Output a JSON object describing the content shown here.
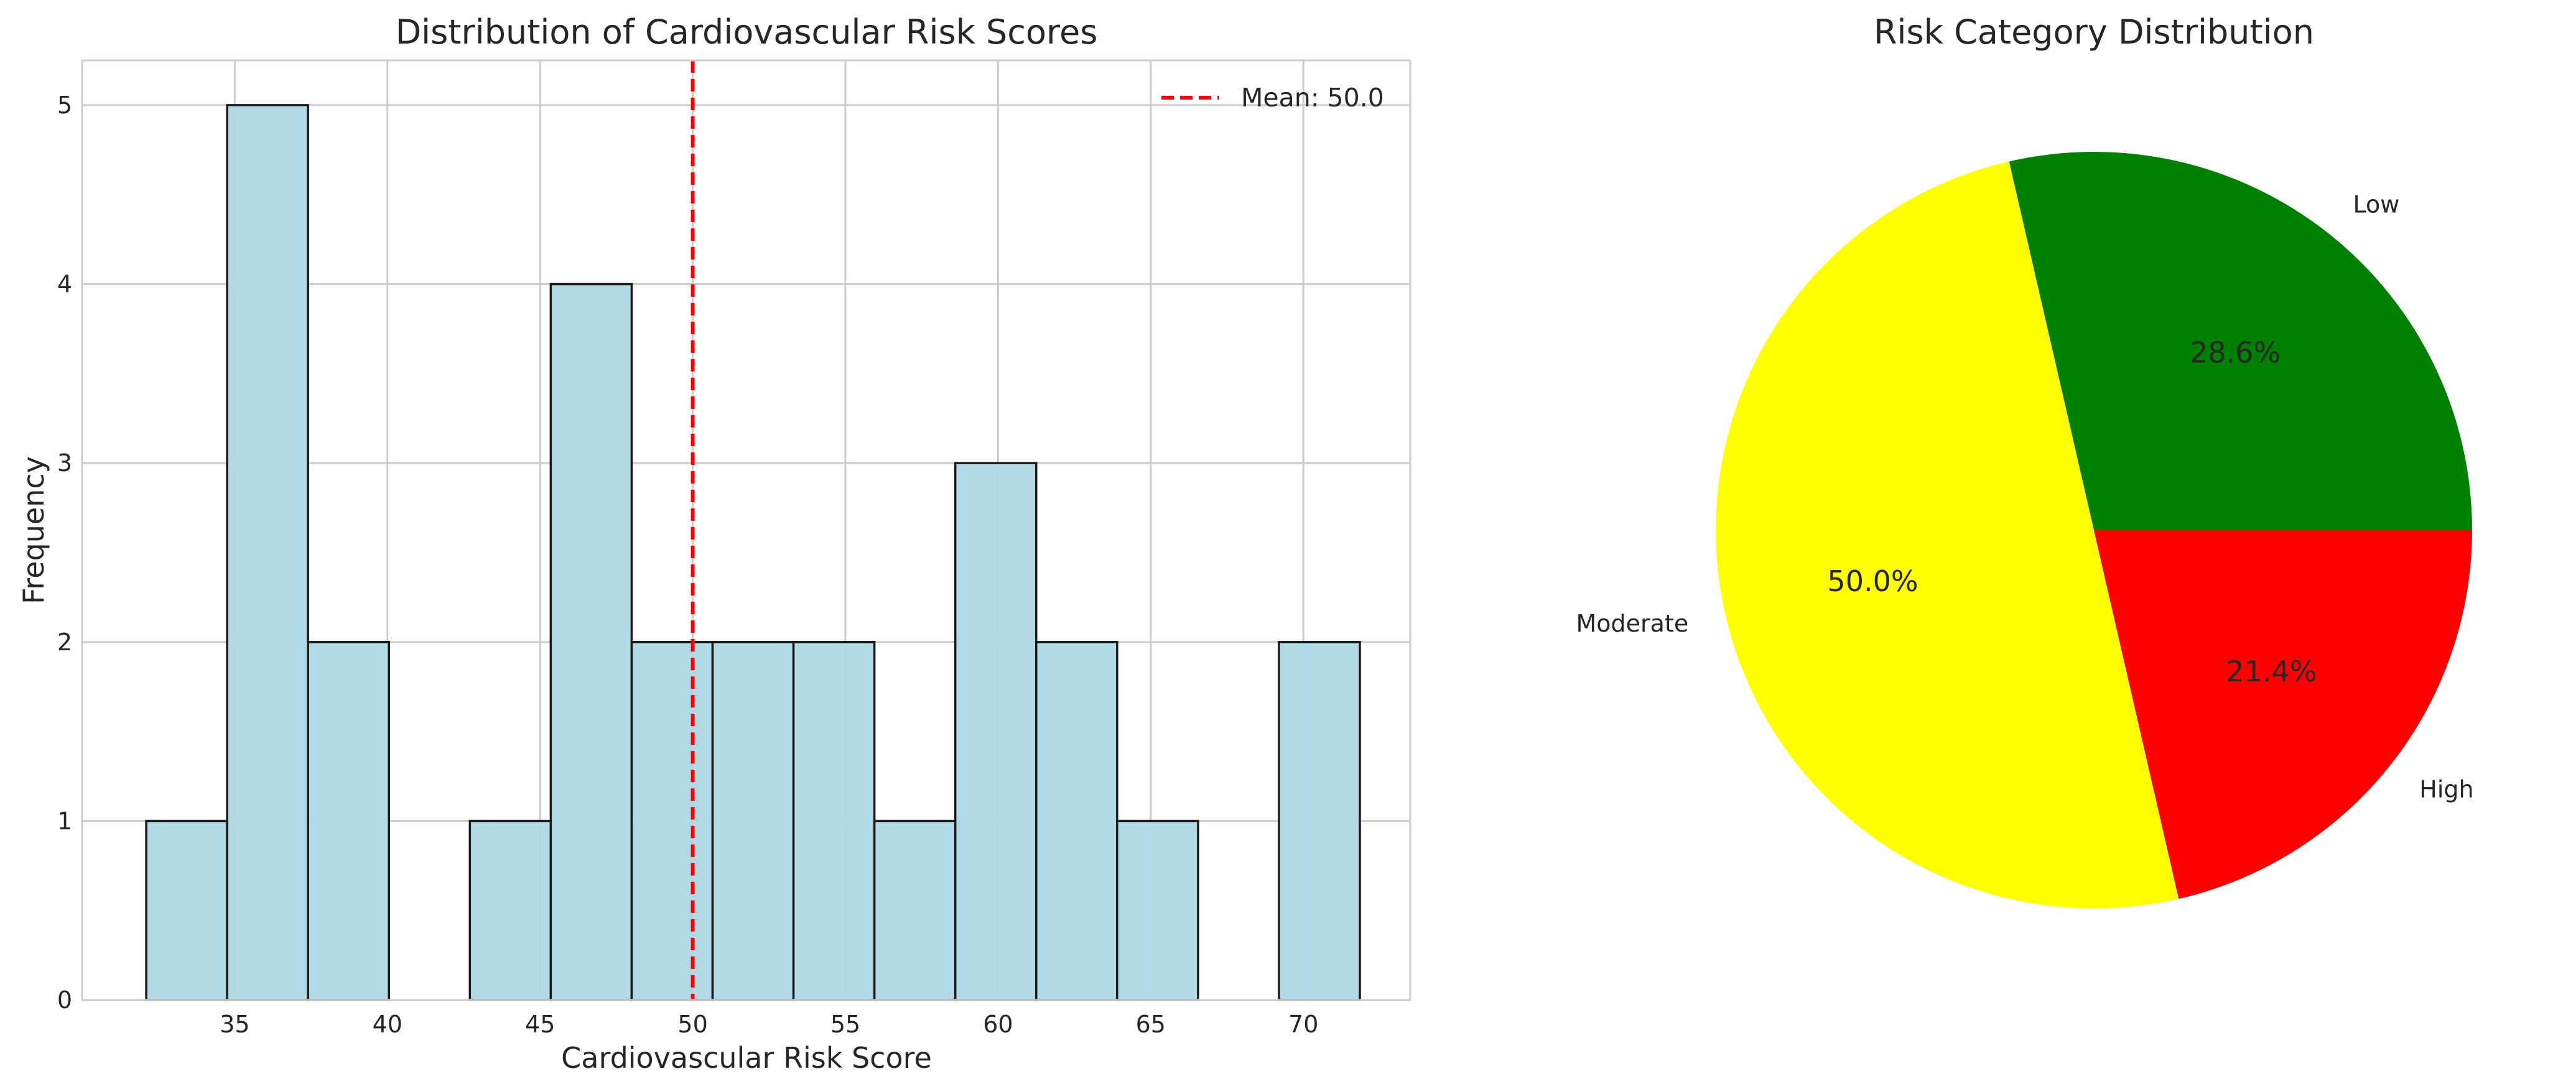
{
  "chart_data": [
    {
      "type": "bar",
      "subtype": "histogram",
      "title": "Distribution of Cardiovascular Risk Scores",
      "xlabel": "Cardiovascular Risk Score",
      "ylabel": "Frequency",
      "xlim": [
        30.0,
        73.5
      ],
      "ylim": [
        0,
        5.25
      ],
      "xticks": [
        35,
        40,
        45,
        50,
        55,
        60,
        65,
        70
      ],
      "yticks": [
        0,
        1,
        2,
        3,
        4,
        5
      ],
      "bins": [
        {
          "x0": 32.1,
          "x1": 34.75,
          "count": 1
        },
        {
          "x0": 34.75,
          "x1": 37.4,
          "count": 5
        },
        {
          "x0": 37.4,
          "x1": 40.05,
          "count": 2
        },
        {
          "x0": 40.05,
          "x1": 42.7,
          "count": 0
        },
        {
          "x0": 42.7,
          "x1": 45.35,
          "count": 1
        },
        {
          "x0": 45.35,
          "x1": 48.0,
          "count": 4
        },
        {
          "x0": 48.0,
          "x1": 50.65,
          "count": 2
        },
        {
          "x0": 50.65,
          "x1": 53.3,
          "count": 2
        },
        {
          "x0": 53.3,
          "x1": 55.95,
          "count": 2
        },
        {
          "x0": 55.95,
          "x1": 58.6,
          "count": 1
        },
        {
          "x0": 58.6,
          "x1": 61.25,
          "count": 3
        },
        {
          "x0": 61.25,
          "x1": 63.9,
          "count": 2
        },
        {
          "x0": 63.9,
          "x1": 66.55,
          "count": 1
        },
        {
          "x0": 66.55,
          "x1": 69.2,
          "count": 0
        },
        {
          "x0": 69.2,
          "x1": 71.85,
          "count": 2
        }
      ],
      "mean_line": {
        "value": 50.0,
        "label": "Mean: 50.0",
        "color": "#ff0000",
        "style": "dashed"
      },
      "bar_color": "#add8e6",
      "edge_color": "#000000",
      "grid": true,
      "legend_position": "top-right"
    },
    {
      "type": "pie",
      "title": "Risk Category Distribution",
      "slices": [
        {
          "label": "Low",
          "value": 28.6,
          "pct_label": "28.6%",
          "color": "#008000"
        },
        {
          "label": "Moderate",
          "value": 50.0,
          "pct_label": "50.0%",
          "color": "#ffff00"
        },
        {
          "label": "High",
          "value": 21.4,
          "pct_label": "21.4%",
          "color": "#ff0000"
        }
      ],
      "start_angle_deg": 0,
      "direction": "counterclockwise"
    }
  ]
}
